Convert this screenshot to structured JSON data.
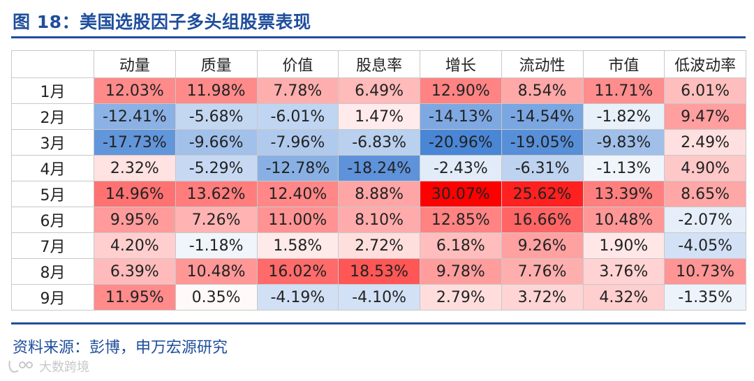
{
  "title": "图 18：美国选股因子多头组股票表现",
  "source": "资料来源：彭博，申万宏源研究",
  "watermark": "大数跨境",
  "table": {
    "corner": "",
    "columns": [
      "动量",
      "质量",
      "价值",
      "股息率",
      "增长",
      "流动性",
      "市值",
      "低波动率"
    ],
    "rows": [
      {
        "label": "1月",
        "values": [
          12.03,
          11.98,
          7.78,
          6.49,
          12.9,
          8.54,
          11.71,
          6.01
        ]
      },
      {
        "label": "2月",
        "values": [
          -12.41,
          -5.68,
          -6.01,
          1.47,
          -14.13,
          -14.54,
          -1.82,
          9.47
        ]
      },
      {
        "label": "3月",
        "values": [
          -17.73,
          -9.66,
          -7.96,
          -6.83,
          -20.96,
          -19.05,
          -9.83,
          2.49
        ]
      },
      {
        "label": "4月",
        "values": [
          2.32,
          -5.29,
          -12.78,
          -18.24,
          -2.43,
          -6.31,
          -1.13,
          4.9
        ]
      },
      {
        "label": "5月",
        "values": [
          14.96,
          13.62,
          12.4,
          8.88,
          30.07,
          25.62,
          13.39,
          8.65
        ]
      },
      {
        "label": "6月",
        "values": [
          9.95,
          7.26,
          11.0,
          8.1,
          12.85,
          16.66,
          10.48,
          -2.07
        ]
      },
      {
        "label": "7月",
        "values": [
          4.2,
          -1.18,
          1.58,
          2.72,
          6.18,
          9.26,
          1.9,
          -4.05
        ]
      },
      {
        "label": "8月",
        "values": [
          6.39,
          10.48,
          16.02,
          18.53,
          9.78,
          7.76,
          3.76,
          10.73
        ]
      },
      {
        "label": "9月",
        "values": [
          11.95,
          0.35,
          -4.19,
          -4.1,
          2.79,
          3.72,
          4.32,
          -1.35
        ]
      }
    ]
  },
  "colors": {
    "title": "#1f4e9c",
    "positive_max": "#ff0000",
    "negative_max": "#4a86d6",
    "neutral": "#ffffff"
  }
}
